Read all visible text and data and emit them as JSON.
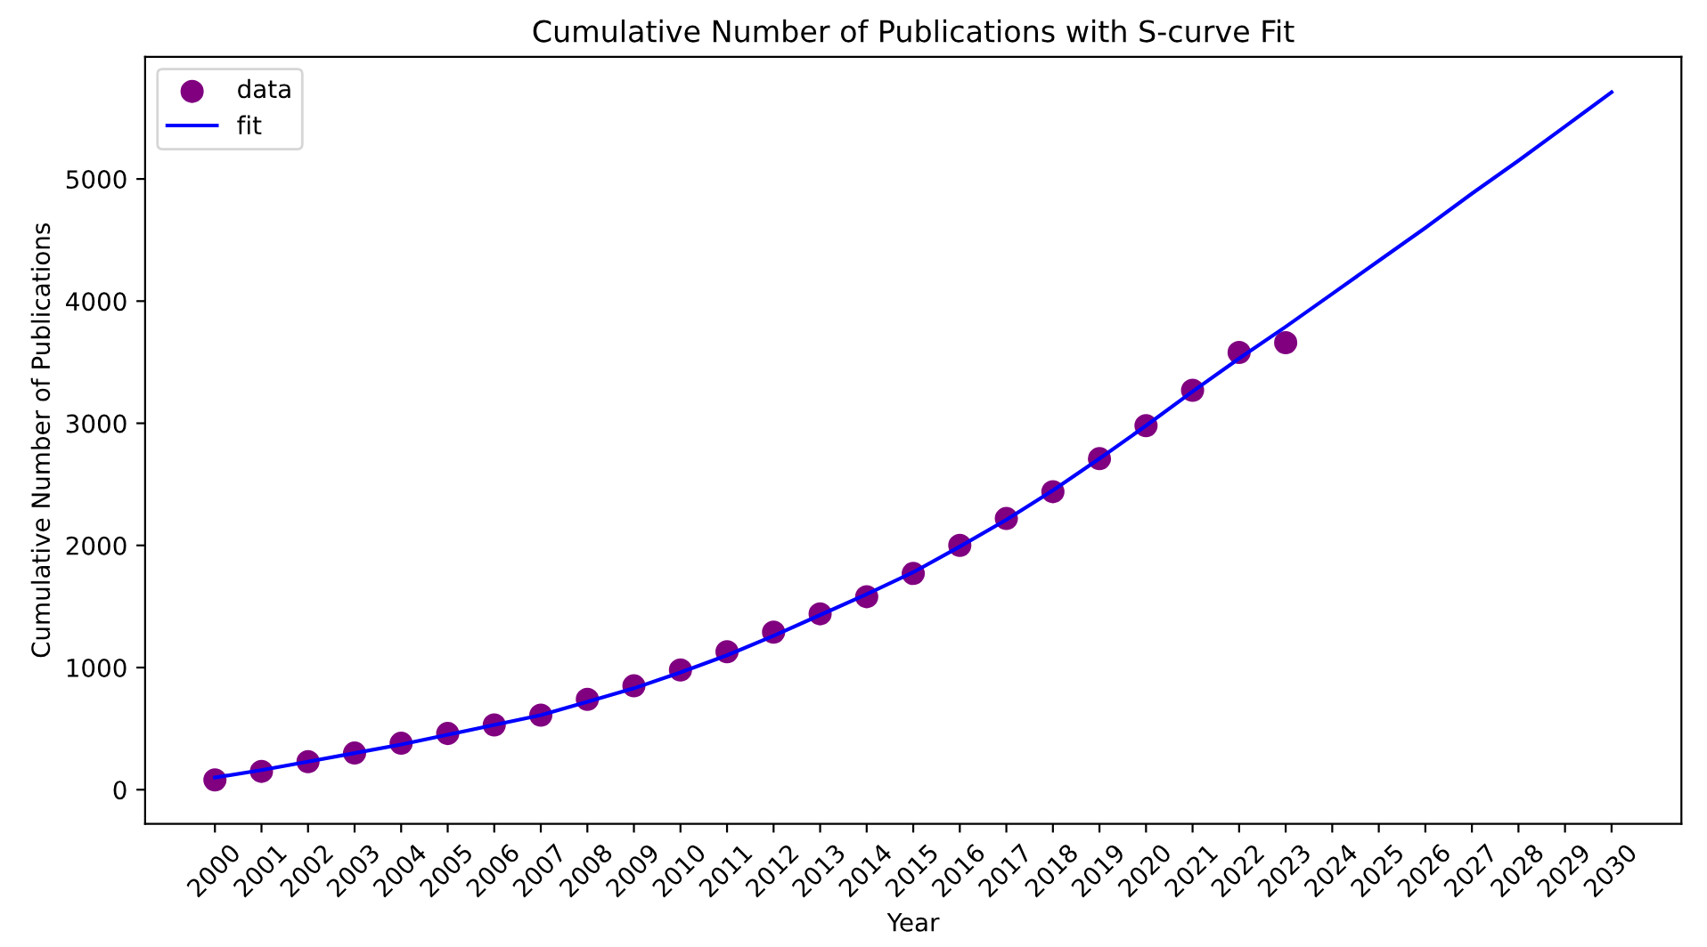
{
  "chart_data": {
    "type": "scatter",
    "title": "Cumulative Number of Publications with S-curve Fit",
    "xlabel": "Year",
    "ylabel": "Cumulative Number of Publications",
    "xlim": [
      1998.5,
      2031.5
    ],
    "xticks": [
      2000,
      2001,
      2002,
      2003,
      2004,
      2005,
      2006,
      2007,
      2008,
      2009,
      2010,
      2011,
      2012,
      2013,
      2014,
      2015,
      2016,
      2017,
      2018,
      2019,
      2020,
      2021,
      2022,
      2023,
      2024,
      2025,
      2026,
      2027,
      2028,
      2029,
      2030
    ],
    "ylim": [
      -280,
      6000
    ],
    "yticks": [
      0,
      1000,
      2000,
      3000,
      4000,
      5000
    ],
    "grid": false,
    "legend": "top left",
    "series": [
      {
        "name": "data",
        "marker": "circle",
        "color": "#800080",
        "x": [
          2000,
          2001,
          2002,
          2003,
          2004,
          2005,
          2006,
          2007,
          2008,
          2009,
          2010,
          2011,
          2012,
          2013,
          2014,
          2015,
          2016,
          2017,
          2018,
          2019,
          2020,
          2021,
          2022,
          2023
        ],
        "values": [
          80,
          150,
          230,
          300,
          380,
          460,
          530,
          610,
          740,
          850,
          980,
          1130,
          1290,
          1440,
          1580,
          1770,
          2000,
          2220,
          2440,
          2710,
          2980,
          3270,
          3580,
          3660
        ]
      },
      {
        "name": "fit",
        "type": "line",
        "marker": "none",
        "line_style": "solid",
        "color": "#0000ff",
        "x": [
          2000,
          2001,
          2002,
          2003,
          2004,
          2005,
          2006,
          2007,
          2008,
          2009,
          2010,
          2011,
          2012,
          2013,
          2014,
          2015,
          2016,
          2017,
          2018,
          2019,
          2020,
          2021,
          2022,
          2023,
          2024,
          2025,
          2026,
          2027,
          2028,
          2029,
          2030
        ],
        "values": [
          100,
          160,
          230,
          300,
          370,
          450,
          530,
          610,
          720,
          830,
          960,
          1100,
          1260,
          1430,
          1600,
          1780,
          1990,
          2210,
          2450,
          2710,
          2980,
          3260,
          3530,
          3790,
          4060,
          4330,
          4600,
          4880,
          5150,
          5430,
          5710
        ]
      }
    ]
  }
}
